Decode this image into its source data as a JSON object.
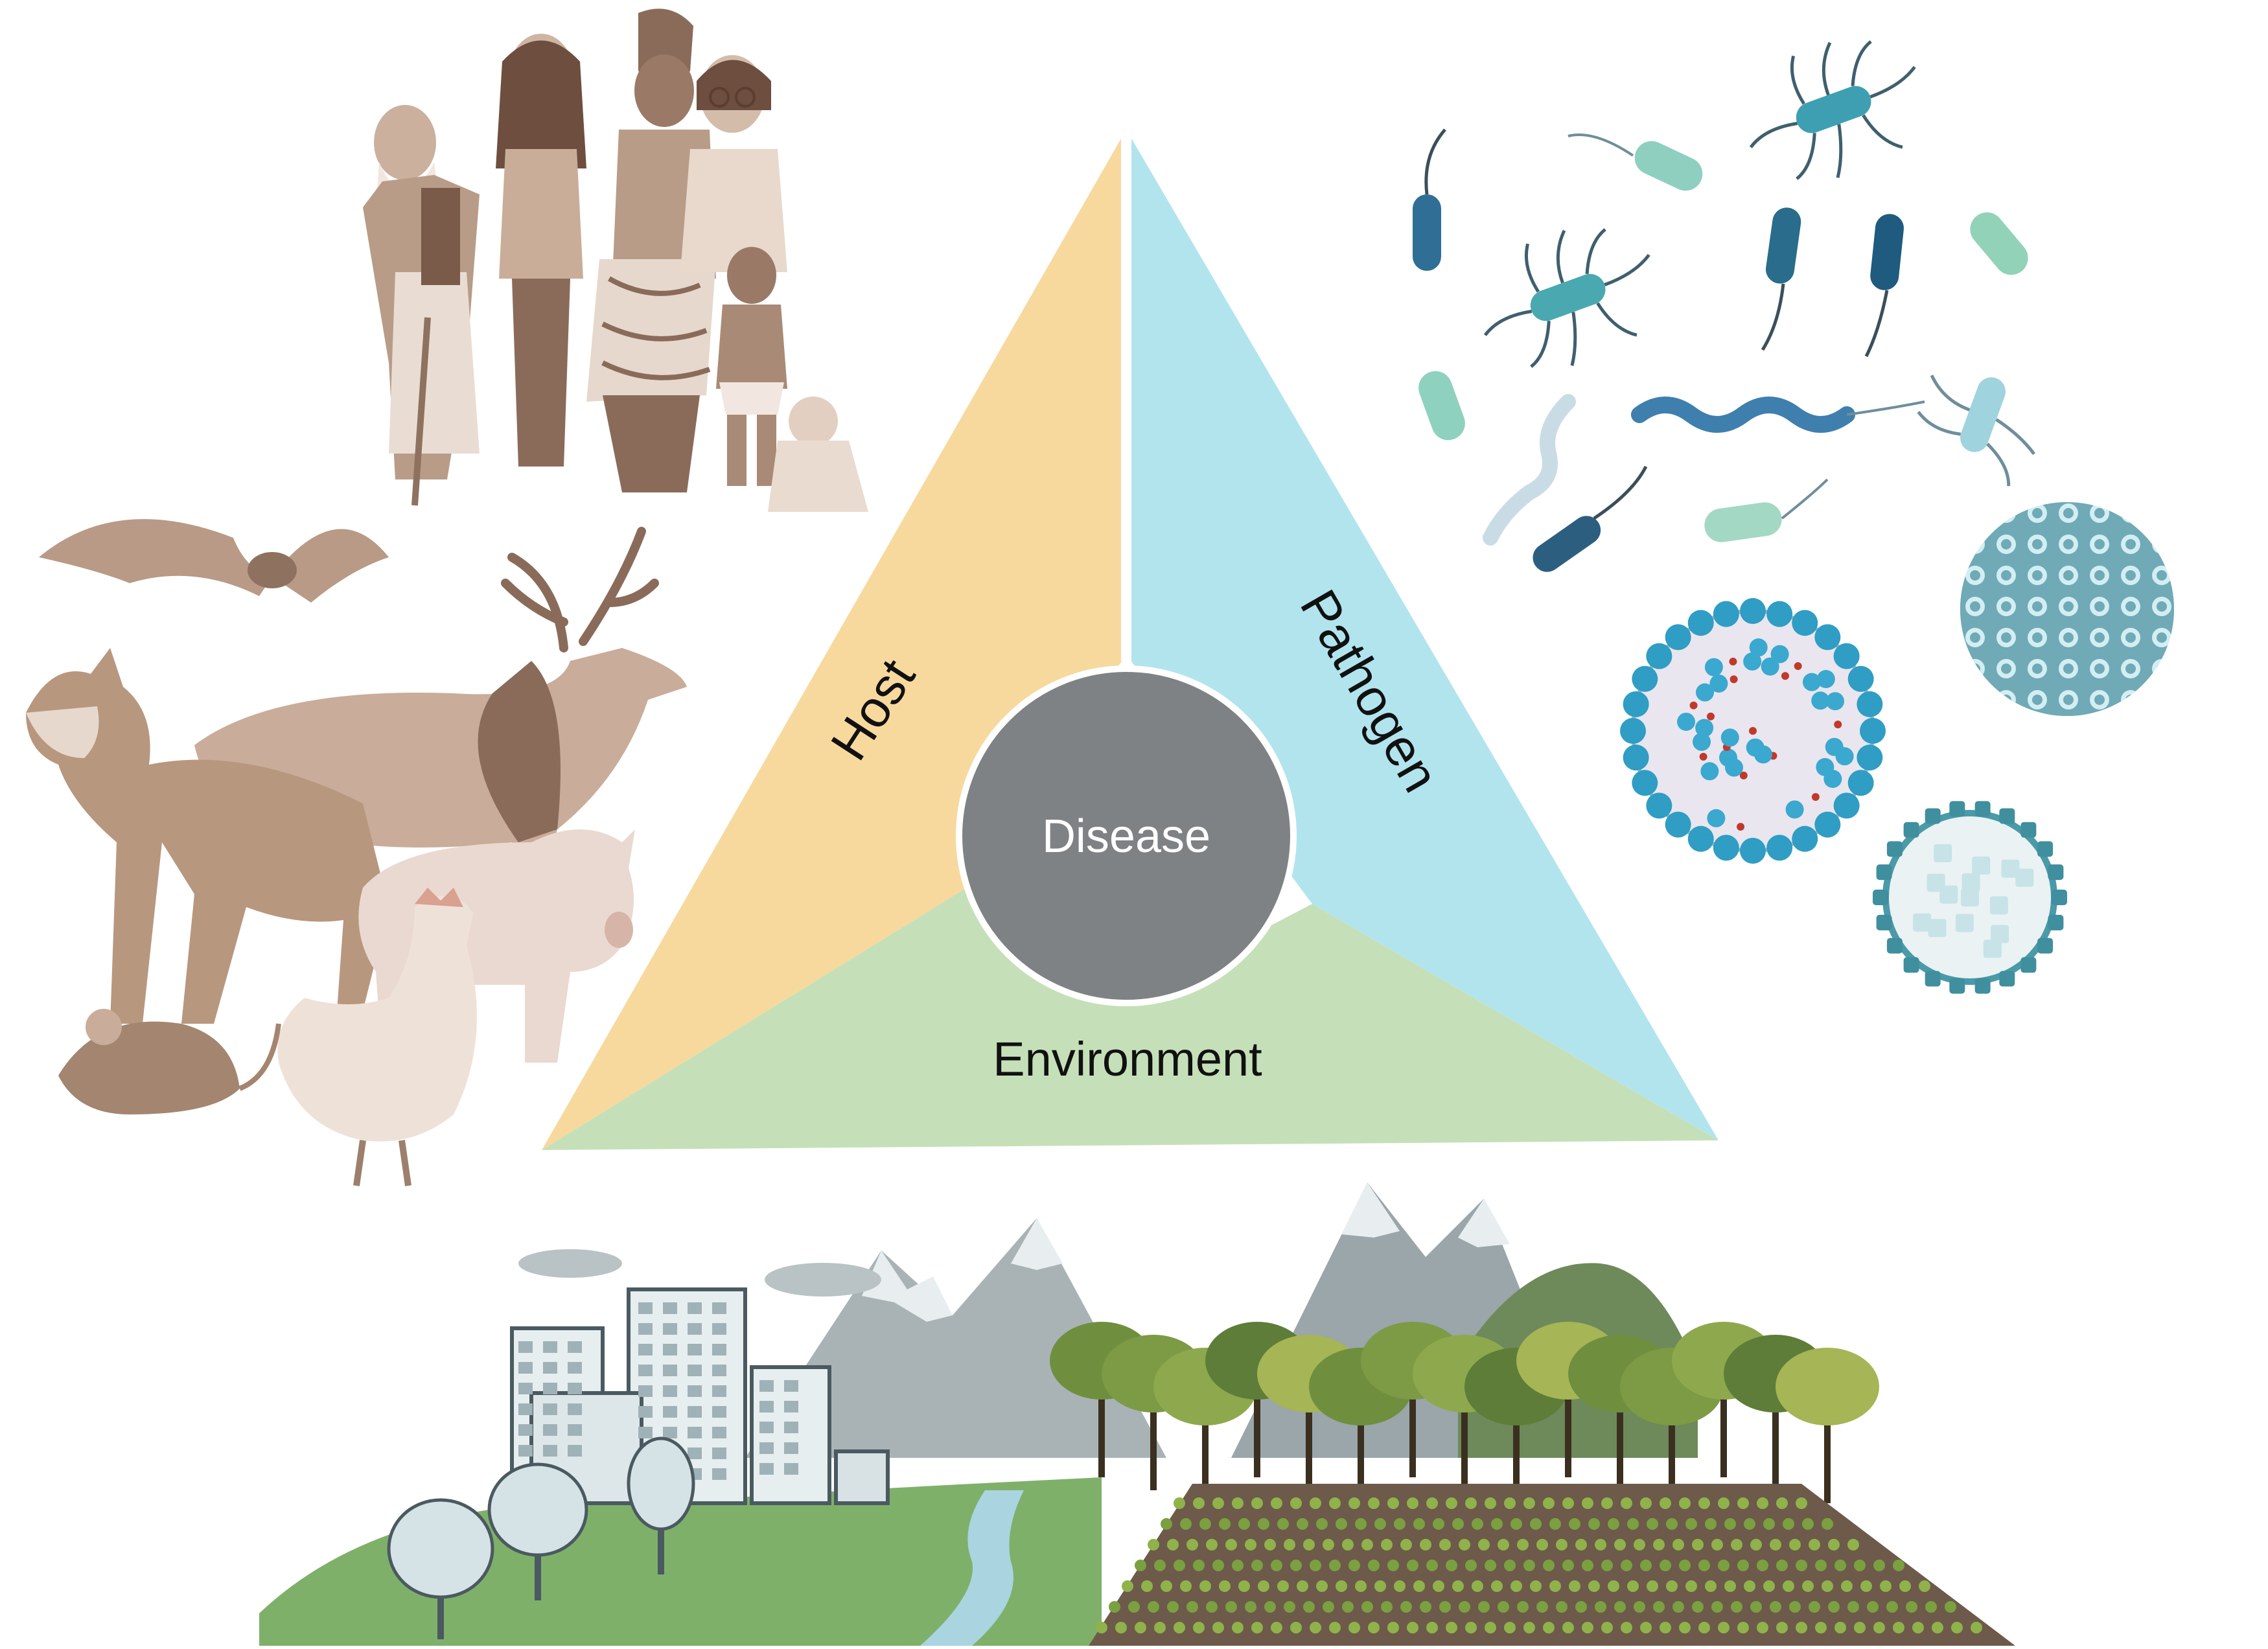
{
  "triad": {
    "host_label": "Host",
    "pathogen_label": "Pathogen",
    "environment_label": "Environment",
    "center_label": "Disease"
  },
  "colors": {
    "host": "#f7d99e",
    "pathogen": "#b2e4ee",
    "environment": "#c5e0b8",
    "center": "#7f8284",
    "people_tone": "#c9ad98",
    "animal_tone": "#d2b7a6",
    "microbe_teal": "#3e9fb3",
    "microbe_dark": "#2c5f7f",
    "grass": "#7fb06a",
    "river": "#a9d4e0",
    "mountain": "#a9b3b6",
    "tree": "#6f8f3f",
    "soil": "#6d5a4a"
  },
  "icons": {
    "people": "people-group-icon",
    "animals": "animal-hosts-icon",
    "bacteria": "bacteria-icon",
    "viruses": "virus-icon",
    "city": "city-icon",
    "mountains": "mountain-icon",
    "forest": "forest-icon",
    "farmland": "farmland-icon",
    "river": "river-icon"
  }
}
